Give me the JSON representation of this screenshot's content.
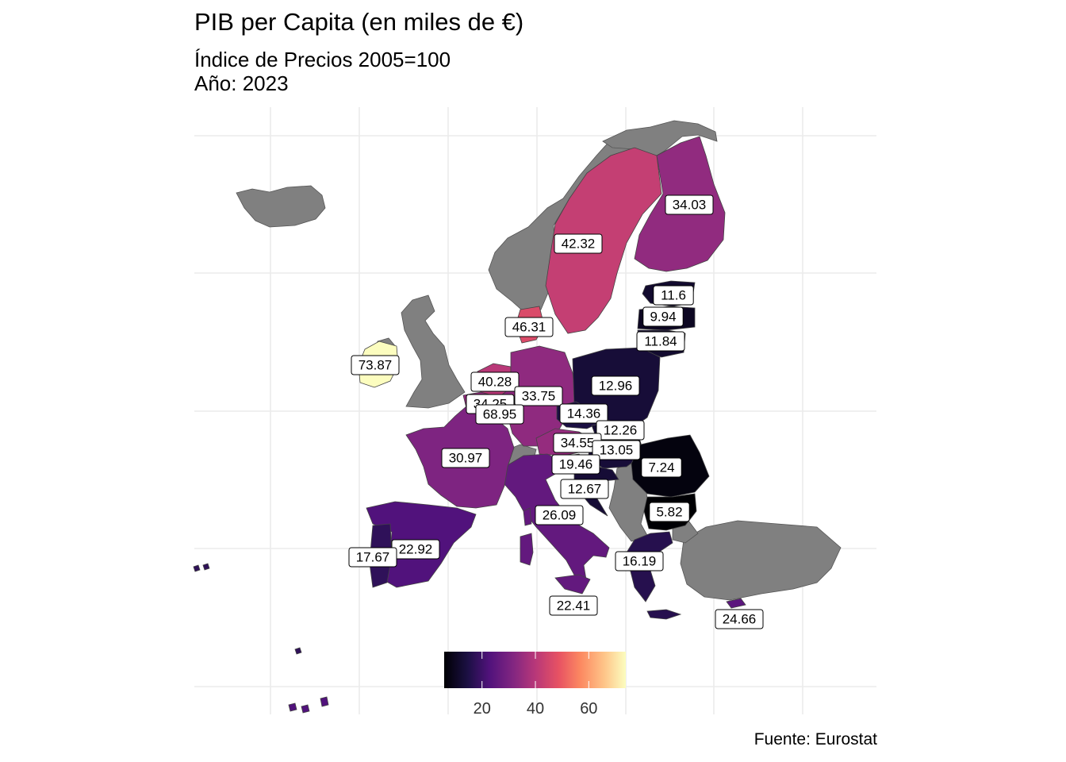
{
  "title": "PIB per Capita (en miles de €)",
  "subtitle_line1": "Índice de Precios 2005=100",
  "subtitle_line2": "Año: 2023",
  "caption": "Fuente: Eurostat",
  "legend": {
    "ticks": [
      20,
      40,
      60
    ],
    "range": [
      5.82,
      73.87
    ]
  },
  "map_data": {
    "type": "choropleth",
    "colorscale": "magma",
    "no_data_color": "#808080",
    "values": [
      {
        "country": "Ireland",
        "value": 73.87
      },
      {
        "country": "Luxembourg",
        "value": 68.95
      },
      {
        "country": "Denmark",
        "value": 46.31
      },
      {
        "country": "Sweden",
        "value": 42.32
      },
      {
        "country": "Netherlands",
        "value": 40.28
      },
      {
        "country": "Austria",
        "value": 34.55
      },
      {
        "country": "Belgium",
        "value": 34.25
      },
      {
        "country": "Finland",
        "value": 34.03
      },
      {
        "country": "Germany",
        "value": 33.75
      },
      {
        "country": "France",
        "value": 30.97
      },
      {
        "country": "Italy",
        "value": 26.09
      },
      {
        "country": "Cyprus",
        "value": 24.66
      },
      {
        "country": "Spain",
        "value": 22.92
      },
      {
        "country": "Malta",
        "value": 22.41
      },
      {
        "country": "Slovenia",
        "value": 19.46
      },
      {
        "country": "Portugal",
        "value": 17.67
      },
      {
        "country": "Greece",
        "value": 16.19
      },
      {
        "country": "Czechia",
        "value": 14.36
      },
      {
        "country": "Hungary",
        "value": 13.05
      },
      {
        "country": "Poland",
        "value": 12.96
      },
      {
        "country": "Croatia",
        "value": 12.67
      },
      {
        "country": "Slovakia",
        "value": 12.26
      },
      {
        "country": "Lithuania",
        "value": 11.84
      },
      {
        "country": "Estonia",
        "value": 11.6
      },
      {
        "country": "Latvia",
        "value": 9.94
      },
      {
        "country": "Romania",
        "value": 7.24
      },
      {
        "country": "Bulgaria",
        "value": 5.82
      }
    ]
  }
}
